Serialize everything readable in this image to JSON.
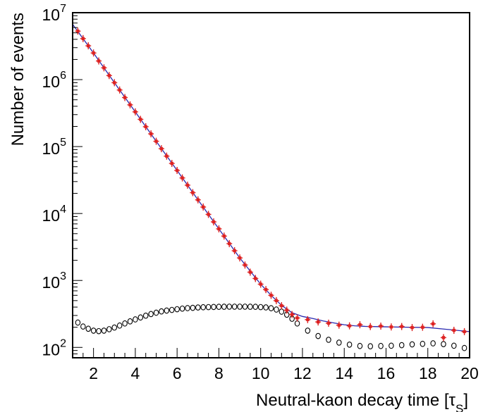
{
  "chart_data": {
    "type": "scatter",
    "xlabel": "Neutral-kaon decay time [τ",
    "xlabel_sub": "S",
    "xlabel_close": "]",
    "ylabel": "Number of events",
    "xlim": [
      1,
      20
    ],
    "ylim": [
      70,
      10000000
    ],
    "yscale": "log",
    "x_ticks": [
      2,
      4,
      6,
      8,
      10,
      12,
      14,
      16,
      18,
      20
    ],
    "y_ticks": [
      {
        "value": 100,
        "base": "10",
        "exp": "2"
      },
      {
        "value": 1000,
        "base": "10",
        "exp": "3"
      },
      {
        "value": 10000,
        "base": "10",
        "exp": "4"
      },
      {
        "value": 100000,
        "base": "10",
        "exp": "5"
      },
      {
        "value": 1000000,
        "base": "10",
        "exp": "6"
      },
      {
        "value": 10000000,
        "base": "10",
        "exp": "7"
      }
    ],
    "colors": {
      "data_points": "#dd2222",
      "fit_curve": "#2a2ab0",
      "open_markers": "#000000",
      "axis": "#000000"
    },
    "series": [
      {
        "marker": "filled-red-errorbar",
        "x": [
          1.25,
          1.5,
          1.75,
          2.0,
          2.25,
          2.5,
          2.75,
          3.0,
          3.25,
          3.5,
          3.75,
          4.0,
          4.25,
          4.5,
          4.75,
          5.0,
          5.25,
          5.5,
          5.75,
          6.0,
          6.25,
          6.5,
          6.75,
          7.0,
          7.25,
          7.5,
          7.75,
          8.0,
          8.25,
          8.5,
          8.75,
          9.0,
          9.25,
          9.5,
          9.75,
          10.0,
          10.25,
          10.5,
          10.75,
          11.0,
          11.25,
          11.5,
          11.75,
          12.25,
          12.75,
          13.25,
          13.75,
          14.25,
          14.75,
          15.25,
          15.75,
          16.25,
          16.75,
          17.25,
          17.75,
          18.25,
          18.75,
          19.25,
          19.75
        ],
        "y": [
          5300000,
          4100000,
          3200000,
          2500000,
          1900000,
          1500000,
          1150000,
          900000,
          700000,
          540000,
          420000,
          330000,
          255000,
          198000,
          155000,
          120000,
          93000,
          72000,
          56000,
          44000,
          34000,
          26500,
          20500,
          16000,
          12500,
          9700,
          7500,
          5900,
          4600,
          3550,
          2780,
          2170,
          1700,
          1330,
          1070,
          880,
          730,
          600,
          500,
          420,
          360,
          310,
          275,
          260,
          240,
          230,
          215,
          210,
          218,
          205,
          208,
          202,
          205,
          198,
          200,
          225,
          140,
          180,
          172
        ]
      },
      {
        "marker": "open-circle",
        "x": [
          1.25,
          1.5,
          1.75,
          2.0,
          2.25,
          2.5,
          2.75,
          3.0,
          3.25,
          3.5,
          3.75,
          4.0,
          4.25,
          4.5,
          4.75,
          5.0,
          5.25,
          5.5,
          5.75,
          6.0,
          6.25,
          6.5,
          6.75,
          7.0,
          7.25,
          7.5,
          7.75,
          8.0,
          8.25,
          8.5,
          8.75,
          9.0,
          9.25,
          9.5,
          9.75,
          10.0,
          10.25,
          10.5,
          10.75,
          11.0,
          11.25,
          11.5,
          11.75,
          12.25,
          12.75,
          13.25,
          13.75,
          14.25,
          14.75,
          15.25,
          15.75,
          16.25,
          16.75,
          17.25,
          17.75,
          18.25,
          18.75,
          19.25,
          19.75
        ],
        "y": [
          235,
          205,
          190,
          178,
          175,
          178,
          187,
          198,
          212,
          228,
          245,
          262,
          280,
          298,
          315,
          330,
          345,
          355,
          363,
          372,
          380,
          386,
          390,
          395,
          398,
          400,
          402,
          404,
          405,
          406,
          406,
          406,
          406,
          405,
          404,
          400,
          396,
          385,
          368,
          342,
          308,
          268,
          228,
          178,
          148,
          130,
          118,
          110,
          105,
          104,
          105,
          106,
          108,
          111,
          113,
          115,
          112,
          106,
          98
        ]
      }
    ],
    "fit_curve": {
      "x": [
        1.0,
        2.0,
        3.0,
        4.0,
        5.0,
        6.0,
        7.0,
        8.0,
        9.0,
        10.0,
        10.5,
        11.0,
        11.5,
        12.0,
        12.5,
        13.0,
        13.5,
        14.0,
        14.5,
        15.0,
        16.0,
        17.0,
        18.0,
        19.0,
        20.0
      ],
      "y": [
        6700000,
        2500000,
        900000,
        330000,
        120000,
        44000,
        16000,
        5900,
        2170,
        880,
        600,
        425,
        330,
        290,
        270,
        248,
        232,
        218,
        210,
        206,
        203,
        200,
        198,
        185,
        172
      ]
    }
  }
}
